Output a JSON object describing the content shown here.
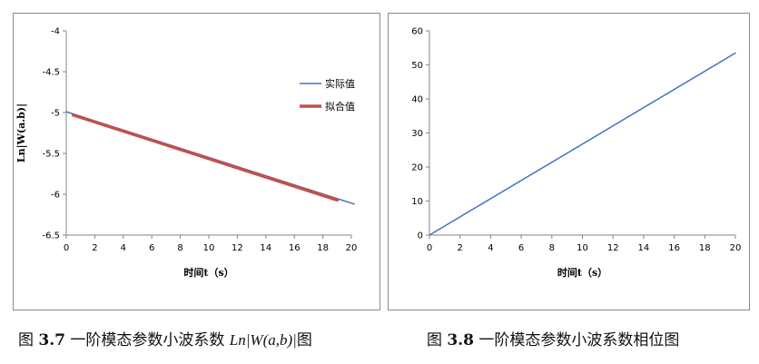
{
  "chart_data": [
    {
      "type": "line",
      "ylabel": "Ln|W(a.b)|",
      "xlabel": "时间t（s）",
      "xlim": [
        0,
        20
      ],
      "ylim": [
        -6.5,
        -4
      ],
      "x_ticks": [
        0,
        2,
        4,
        6,
        8,
        10,
        12,
        14,
        16,
        18,
        20
      ],
      "y_ticks": [
        -4,
        -4.5,
        -5,
        -5.5,
        -6,
        -6.5
      ],
      "legend_position": "right",
      "series": [
        {
          "name": "实际值",
          "color": "#4472c4",
          "x": [
            0,
            20.2
          ],
          "y": [
            -4.99,
            -6.12
          ]
        },
        {
          "name": "拟合值",
          "color": "#c0504d",
          "x": [
            0.5,
            19.0
          ],
          "y": [
            -5.03,
            -6.07
          ]
        }
      ]
    },
    {
      "type": "line",
      "xlabel": "时间t（s）",
      "xlim": [
        0,
        20
      ],
      "ylim": [
        0,
        60
      ],
      "x_ticks": [
        0,
        2,
        4,
        6,
        8,
        10,
        12,
        14,
        16,
        18,
        20
      ],
      "y_ticks": [
        0,
        10,
        20,
        30,
        40,
        50,
        60
      ],
      "series": [
        {
          "color": "#4472c4",
          "x": [
            0,
            20
          ],
          "y": [
            0,
            53.5
          ]
        }
      ]
    }
  ],
  "captions": {
    "left": {
      "prefix": "图 ",
      "num": "3.7",
      "text": " 一阶模态参数小波系数 ",
      "math": "Ln|W(a,b)|",
      "suffix": "图"
    },
    "right": {
      "prefix": "图 ",
      "num": "3.8",
      "text": " 一阶模态参数小波系数相位图"
    }
  }
}
